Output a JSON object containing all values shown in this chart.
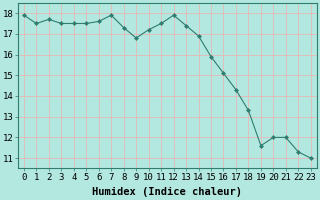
{
  "x": [
    0,
    1,
    2,
    3,
    4,
    5,
    6,
    7,
    8,
    9,
    10,
    11,
    12,
    13,
    14,
    15,
    16,
    17,
    18,
    19,
    20,
    21,
    22,
    23
  ],
  "y": [
    17.9,
    17.5,
    17.7,
    17.5,
    17.5,
    17.5,
    17.6,
    17.9,
    17.3,
    16.8,
    17.2,
    17.5,
    17.9,
    17.4,
    16.9,
    15.9,
    15.1,
    14.3,
    13.3,
    11.6,
    12.0,
    12.0,
    11.3,
    11.0
  ],
  "line_color": "#2e7d6e",
  "marker": "D",
  "marker_size": 2.0,
  "bg_color": "#b3e8e0",
  "grid_color": "#e8b8b8",
  "title": "",
  "xlabel": "Humidex (Indice chaleur)",
  "xlim": [
    -0.5,
    23.5
  ],
  "ylim": [
    10.5,
    18.5
  ],
  "xticks": [
    0,
    1,
    2,
    3,
    4,
    5,
    6,
    7,
    8,
    9,
    10,
    11,
    12,
    13,
    14,
    15,
    16,
    17,
    18,
    19,
    20,
    21,
    22,
    23
  ],
  "yticks": [
    11,
    12,
    13,
    14,
    15,
    16,
    17,
    18
  ],
  "tick_fontsize": 6.5,
  "label_fontsize": 7.5
}
